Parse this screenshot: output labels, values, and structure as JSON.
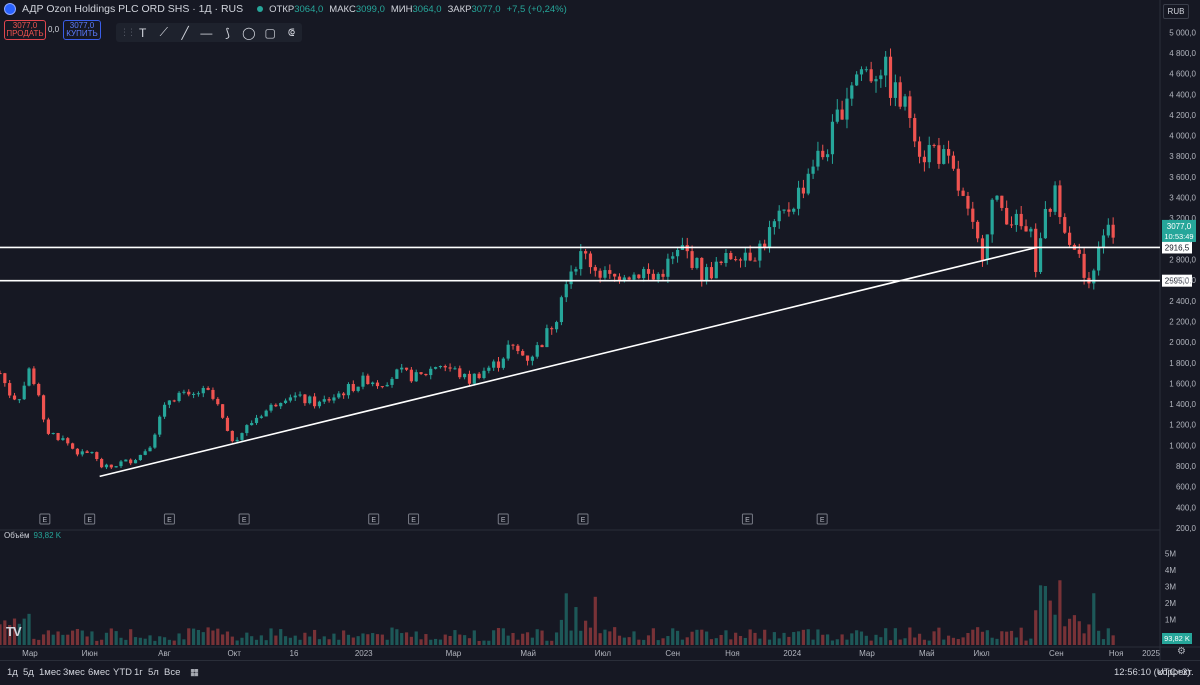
{
  "header": {
    "title": "АДР Ozon Holdings PLC ORD SHS · 1Д · RUS",
    "open_label": "ОТКР",
    "open_value": "3064,0",
    "high_label": "МАКС",
    "high_value": "3099,0",
    "low_label": "МИН",
    "low_value": "3064,0",
    "close_label": "ЗАКР",
    "close_value": "3077,0",
    "change": "+7,5 (+0,24%)"
  },
  "trade": {
    "sell_price": "3077,0",
    "sell_label": "ПРОДАТЬ",
    "spread": "0,0",
    "buy_price": "3077,0",
    "buy_label": "КУПИТЬ"
  },
  "currency": "RUB",
  "toolbar_icons": [
    "text-tool-icon",
    "trendline-icon",
    "line-icon",
    "horizontal-line-icon",
    "brush-icon",
    "ellipse-icon",
    "rectangle-icon",
    "path-icon"
  ],
  "toolbar_glyphs": [
    "T",
    "⟋",
    "╱",
    "—",
    "⟆",
    "◯",
    "▢",
    "⟃"
  ],
  "volume": {
    "label": "Объём",
    "value": "93,82 K",
    "badge": "93,82 K"
  },
  "price_tag": {
    "value": "3077,0",
    "countdown": "10:53:49"
  },
  "bottom": {
    "timeframes": [
      "1д",
      "5д",
      "1мес",
      "3мес",
      "6мес",
      "YTD",
      "1г",
      "5л",
      "Все"
    ],
    "clock": "12:56:10 (UTC+3)",
    "adjust": "коррект."
  },
  "colors": {
    "up": "#26a69a",
    "down": "#ef5350",
    "bg": "#161823",
    "text": "#b2b5be"
  },
  "chart_data": {
    "type": "candlestick",
    "ylim": [
      200,
      5100
    ],
    "y_ticks": [
      200,
      400,
      600,
      800,
      1000,
      1200,
      1400,
      1600,
      1800,
      2000,
      2200,
      2400,
      2600,
      2800,
      3000,
      3200,
      3400,
      3600,
      3800,
      4000,
      4200,
      4400,
      4600,
      4800,
      5000
    ],
    "y_tick_labels": [
      "200,0",
      "400,0",
      "600,0",
      "800,0",
      "1 000,0",
      "1 200,0",
      "1 400,0",
      "1 600,0",
      "1 800,0",
      "2 000,0",
      "2 200,0",
      "2 400,0",
      "2 600,0",
      "2 800,0",
      "3 000,0",
      "3 200,0",
      "3 400,0",
      "3 600,0",
      "3 800,0",
      "4 000,0",
      "4 200,0",
      "4 400,0",
      "4 600,0",
      "4 800,0",
      "5 000,0"
    ],
    "x_labels": [
      "Мар",
      "Июн",
      "Авг",
      "Окт",
      "16",
      "2023",
      "Мар",
      "Май",
      "Июл",
      "Сен",
      "Ноя",
      "2024",
      "Мар",
      "Май",
      "Июл",
      "Сен",
      "Ноя",
      "2025"
    ],
    "x_index": [
      0.03,
      0.09,
      0.165,
      0.235,
      0.295,
      0.365,
      0.455,
      0.53,
      0.605,
      0.675,
      0.735,
      0.795,
      0.87,
      0.93,
      0.985,
      1.06,
      1.12,
      1.155
    ],
    "price_path": [
      [
        0.0,
        1700
      ],
      [
        0.01,
        1500
      ],
      [
        0.018,
        1450
      ],
      [
        0.025,
        1600
      ],
      [
        0.03,
        1750
      ],
      [
        0.038,
        1500
      ],
      [
        0.045,
        1150
      ],
      [
        0.055,
        1100
      ],
      [
        0.065,
        1050
      ],
      [
        0.075,
        950
      ],
      [
        0.085,
        900
      ],
      [
        0.092,
        950
      ],
      [
        0.1,
        800
      ],
      [
        0.11,
        780
      ],
      [
        0.12,
        830
      ],
      [
        0.13,
        850
      ],
      [
        0.14,
        900
      ],
      [
        0.15,
        1000
      ],
      [
        0.16,
        1250
      ],
      [
        0.17,
        1450
      ],
      [
        0.18,
        1500
      ],
      [
        0.19,
        1450
      ],
      [
        0.2,
        1520
      ],
      [
        0.21,
        1500
      ],
      [
        0.22,
        1350
      ],
      [
        0.23,
        1050
      ],
      [
        0.24,
        1100
      ],
      [
        0.25,
        1200
      ],
      [
        0.26,
        1300
      ],
      [
        0.27,
        1350
      ],
      [
        0.28,
        1450
      ],
      [
        0.29,
        1500
      ],
      [
        0.3,
        1450
      ],
      [
        0.31,
        1430
      ],
      [
        0.32,
        1400
      ],
      [
        0.33,
        1450
      ],
      [
        0.34,
        1500
      ],
      [
        0.35,
        1550
      ],
      [
        0.36,
        1600
      ],
      [
        0.37,
        1650
      ],
      [
        0.38,
        1600
      ],
      [
        0.39,
        1650
      ],
      [
        0.4,
        1700
      ],
      [
        0.41,
        1680
      ],
      [
        0.42,
        1650
      ],
      [
        0.43,
        1720
      ],
      [
        0.44,
        1800
      ],
      [
        0.45,
        1750
      ],
      [
        0.46,
        1700
      ],
      [
        0.47,
        1620
      ],
      [
        0.48,
        1700
      ],
      [
        0.49,
        1750
      ],
      [
        0.5,
        1800
      ],
      [
        0.51,
        1950
      ],
      [
        0.52,
        1900
      ],
      [
        0.53,
        1850
      ],
      [
        0.54,
        1950
      ],
      [
        0.55,
        2100
      ],
      [
        0.56,
        2300
      ],
      [
        0.565,
        2600
      ],
      [
        0.575,
        2750
      ],
      [
        0.585,
        2850
      ],
      [
        0.595,
        2750
      ],
      [
        0.605,
        2650
      ],
      [
        0.615,
        2600
      ],
      [
        0.625,
        2700
      ],
      [
        0.635,
        2650
      ],
      [
        0.645,
        2700
      ],
      [
        0.655,
        2600
      ],
      [
        0.665,
        2700
      ],
      [
        0.675,
        2800
      ],
      [
        0.685,
        2900
      ],
      [
        0.695,
        2800
      ],
      [
        0.705,
        2650
      ],
      [
        0.715,
        2700
      ],
      [
        0.725,
        2750
      ],
      [
        0.735,
        2850
      ],
      [
        0.745,
        2900
      ],
      [
        0.755,
        2850
      ],
      [
        0.765,
        2950
      ],
      [
        0.775,
        3100
      ],
      [
        0.785,
        3200
      ],
      [
        0.795,
        3350
      ],
      [
        0.805,
        3500
      ],
      [
        0.815,
        3750
      ],
      [
        0.825,
        3800
      ],
      [
        0.835,
        4000
      ],
      [
        0.845,
        4300
      ],
      [
        0.855,
        4550
      ],
      [
        0.865,
        4650
      ],
      [
        0.875,
        4600
      ],
      [
        0.885,
        4700
      ],
      [
        0.895,
        4450
      ],
      [
        0.905,
        4300
      ],
      [
        0.915,
        4200
      ],
      [
        0.925,
        3800
      ],
      [
        0.935,
        3900
      ],
      [
        0.945,
        3800
      ],
      [
        0.955,
        3650
      ],
      [
        0.965,
        3400
      ],
      [
        0.975,
        3100
      ],
      [
        0.985,
        2850
      ],
      [
        0.995,
        3350
      ],
      [
        1.005,
        3300
      ],
      [
        1.015,
        3200
      ],
      [
        1.025,
        3100
      ],
      [
        1.035,
        3000
      ],
      [
        1.04,
        2700
      ],
      [
        1.05,
        3250
      ],
      [
        1.06,
        3450
      ],
      [
        1.07,
        3100
      ],
      [
        1.08,
        2900
      ],
      [
        1.09,
        2550
      ],
      [
        1.095,
        2470
      ],
      [
        1.1,
        2900
      ],
      [
        1.105,
        3050
      ],
      [
        1.11,
        3200
      ],
      [
        1.117,
        3077
      ]
    ],
    "horizontal_levels": [
      {
        "value": 2916.5,
        "label": "2916,5"
      },
      {
        "value": 2595.0,
        "label": "2595,0"
      }
    ],
    "trendline": {
      "from": [
        0.1,
        700
      ],
      "to": [
        1.04,
        2916.5
      ]
    },
    "earnings_markers_x": [
      0.045,
      0.09,
      0.17,
      0.245,
      0.375,
      0.415,
      0.505,
      0.585,
      0.75,
      0.825
    ],
    "earnings_label": "E",
    "volume_axis": [
      "1M",
      "2M",
      "3M",
      "4M",
      "5M"
    ]
  }
}
